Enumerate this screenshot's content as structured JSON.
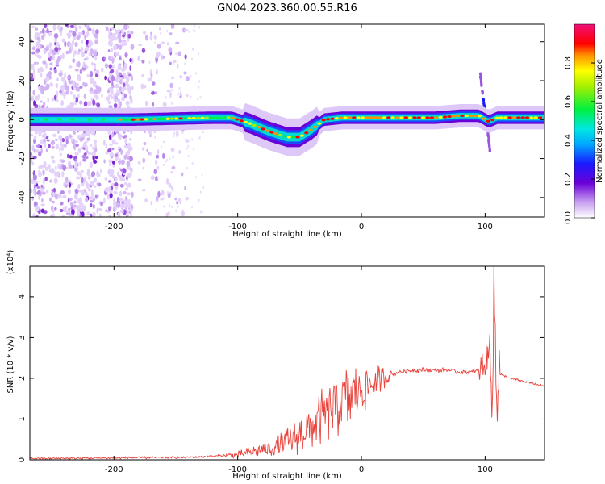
{
  "title": "GN04.2023.360.00.55.R16",
  "chart_data": [
    {
      "type": "heatmap",
      "xlabel": "Height of straight line (km)",
      "ylabel": "Frequency (Hz)",
      "xlim": [
        -268,
        148
      ],
      "ylim": [
        -50,
        49
      ],
      "x_ticks": [
        "-200",
        "-100",
        "0",
        "100"
      ],
      "y_ticks": [
        "-40",
        "-20",
        "0",
        "20",
        "40"
      ],
      "colorbar": {
        "label": "Normalized spectral amplitude",
        "range": [
          0,
          1
        ],
        "ticks": [
          "0.0",
          "0.2",
          "0.4",
          "0.6",
          "0.8"
        ]
      },
      "ridge": {
        "x": [
          -268,
          -200,
          -185,
          -120,
          -105,
          -90,
          -75,
          -60,
          -50,
          -40,
          -30,
          -15,
          0,
          30,
          60,
          80,
          95,
          103,
          110,
          148
        ],
        "y": [
          0,
          0,
          0,
          1,
          1,
          -2,
          -6,
          -9,
          -9,
          -5,
          0,
          1,
          1,
          1,
          1,
          2,
          2,
          -1,
          1,
          1
        ]
      }
    },
    {
      "type": "line",
      "xlabel": "Height of straight line (km)",
      "ylabel": "SNR (10 * v/v)",
      "y_multiplier": "(x10⁴)",
      "xlim": [
        -268,
        148
      ],
      "ylim": [
        0,
        4.75
      ],
      "x_ticks": [
        "-200",
        "-100",
        "0",
        "100"
      ],
      "y_ticks": [
        "0",
        "1",
        "2",
        "3",
        "4"
      ],
      "color": "#e8423b",
      "envelope": {
        "x": [
          -268,
          -140,
          -100,
          -85,
          -70,
          -60,
          -50,
          -40,
          -30,
          -20,
          -10,
          0,
          10,
          20,
          30,
          40,
          50,
          60,
          70,
          80,
          90,
          95,
          100,
          105,
          108,
          112,
          120,
          135,
          148
        ],
        "y": [
          0.03,
          0.06,
          0.12,
          0.22,
          0.3,
          0.42,
          0.6,
          0.85,
          1.1,
          1.35,
          1.55,
          1.72,
          1.9,
          2.05,
          2.15,
          2.2,
          2.2,
          2.2,
          2.2,
          2.15,
          2.15,
          2.2,
          2.35,
          2.6,
          2.3,
          2.1,
          2.0,
          1.9,
          1.8
        ]
      }
    }
  ]
}
